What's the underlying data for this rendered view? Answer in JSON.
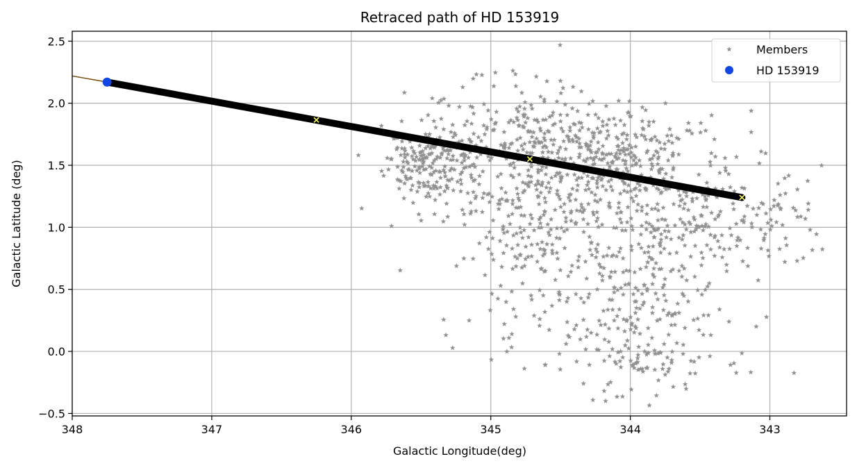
{
  "chart_data": {
    "type": "scatter",
    "title": "Retraced path of HD 153919",
    "xlabel": "Galactic Longitude(deg)",
    "ylabel": "Galactic Latitude (deg)",
    "xlim": [
      348.0,
      342.45
    ],
    "ylim": [
      -0.52,
      2.58
    ],
    "x_inverted": true,
    "grid": true,
    "xticks": [
      348,
      347,
      346,
      345,
      344,
      343
    ],
    "yticks": [
      -0.5,
      0.0,
      0.5,
      1.0,
      1.5,
      2.0,
      2.5
    ],
    "xtick_labels": [
      "348",
      "347",
      "346",
      "345",
      "344",
      "343"
    ],
    "ytick_labels": [
      "−0.5",
      "0.0",
      "0.5",
      "1.0",
      "1.5",
      "2.0",
      "2.5"
    ],
    "legend_position": "top-right",
    "colors": {
      "members": "#919191",
      "star": "#1246e0",
      "path": "#000000",
      "extension": "#7a5010",
      "markers": "#ffff66",
      "grid": "#b0b0b0"
    },
    "series": [
      {
        "name": "Members",
        "kind": "scatter",
        "marker": "star",
        "clusters": [
          {
            "cx": 345.45,
            "cy": 1.5,
            "sx": 0.15,
            "sy": 0.15,
            "n": 160
          },
          {
            "cx": 344.7,
            "cy": 1.65,
            "sx": 0.45,
            "sy": 0.25,
            "n": 340
          },
          {
            "cx": 344.05,
            "cy": 1.55,
            "sx": 0.35,
            "sy": 0.2,
            "n": 220
          },
          {
            "cx": 344.55,
            "cy": 1.05,
            "sx": 0.25,
            "sy": 0.2,
            "n": 100
          },
          {
            "cx": 343.7,
            "cy": 1.05,
            "sx": 0.4,
            "sy": 0.25,
            "n": 200
          },
          {
            "cx": 344.1,
            "cy": 0.35,
            "sx": 0.45,
            "sy": 0.3,
            "n": 240
          },
          {
            "cx": 343.9,
            "cy": -0.1,
            "sx": 0.25,
            "sy": 0.12,
            "n": 60
          },
          {
            "cx": 343.0,
            "cy": 1.0,
            "sx": 0.25,
            "sy": 0.2,
            "n": 60
          },
          {
            "cx": 344.9,
            "cy": 1.2,
            "sx": 0.4,
            "sy": 0.3,
            "n": 80
          }
        ]
      },
      {
        "name": "HD 153919",
        "kind": "point",
        "x": [
          347.75
        ],
        "y": [
          2.17
        ]
      },
      {
        "name": "path",
        "kind": "line",
        "x": [
          347.75,
          343.2
        ],
        "y": [
          2.17,
          1.24
        ]
      },
      {
        "name": "extension",
        "kind": "line",
        "x": [
          348.0,
          347.75
        ],
        "y": [
          2.22,
          2.17
        ]
      },
      {
        "name": "markers",
        "kind": "scatter",
        "marker": "x",
        "x": [
          346.25,
          344.72,
          343.2
        ],
        "y": [
          1.865,
          1.55,
          1.24
        ]
      }
    ],
    "legend": [
      {
        "label": "Members",
        "marker": "star"
      },
      {
        "label": "HD 153919",
        "marker": "circle"
      }
    ]
  }
}
